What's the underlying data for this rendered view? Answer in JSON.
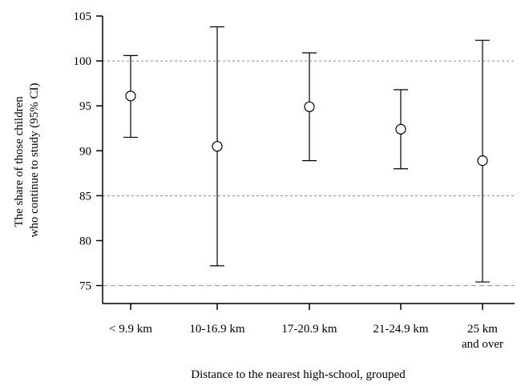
{
  "chart_data": {
    "type": "scatter",
    "title": "",
    "xlabel": "Distance to the nearest high-school, grouped",
    "ylabel": [
      "The share of those children",
      "who continue to study (95% CI)"
    ],
    "categories": [
      [
        "< 9.9 km"
      ],
      [
        "10-16.9 km"
      ],
      [
        "17-20.9 km"
      ],
      [
        "21-24.9 km"
      ],
      [
        "25 km",
        "and over"
      ]
    ],
    "points": [
      {
        "estimate": 96.1,
        "ci_low": 91.5,
        "ci_high": 100.6
      },
      {
        "estimate": 90.5,
        "ci_low": 77.2,
        "ci_high": 103.8
      },
      {
        "estimate": 94.9,
        "ci_low": 88.9,
        "ci_high": 100.9
      },
      {
        "estimate": 92.4,
        "ci_low": 88.0,
        "ci_high": 96.8
      },
      {
        "estimate": 88.9,
        "ci_low": 75.4,
        "ci_high": 102.3
      }
    ],
    "ylim": [
      73,
      105
    ],
    "yticks": [
      75,
      80,
      85,
      90,
      95,
      100,
      105
    ],
    "reference_lines": [
      75,
      85,
      100
    ],
    "grid": false,
    "colors": {
      "marks": "#000000",
      "reference_line": "#8c8c8c"
    }
  }
}
